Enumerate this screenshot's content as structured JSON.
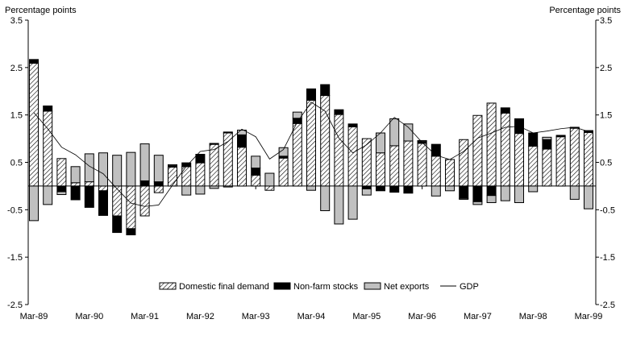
{
  "chart_data": {
    "type": "bar",
    "stacked": true,
    "ylabel_left": "Percentage points",
    "ylabel_right": "Percentage points",
    "ylim": [
      -2.5,
      3.5
    ],
    "yticks": [
      "-2.5",
      "-1.5",
      "-0.5",
      "0.5",
      "1.5",
      "2.5",
      "3.5"
    ],
    "grid": false,
    "legend_position": "bottom",
    "categories": [
      "Mar-89",
      "Jun-89",
      "Sep-89",
      "Dec-89",
      "Mar-90",
      "Jun-90",
      "Sep-90",
      "Dec-90",
      "Mar-91",
      "Jun-91",
      "Sep-91",
      "Dec-91",
      "Mar-92",
      "Jun-92",
      "Sep-92",
      "Dec-92",
      "Mar-93",
      "Jun-93",
      "Sep-93",
      "Dec-93",
      "Mar-94",
      "Jun-94",
      "Sep-94",
      "Dec-94",
      "Mar-95",
      "Jun-95",
      "Sep-95",
      "Dec-95",
      "Mar-96",
      "Jun-96",
      "Sep-96",
      "Dec-96",
      "Mar-97",
      "Jun-97",
      "Sep-97",
      "Dec-97",
      "Mar-98",
      "Jun-98",
      "Sep-98",
      "Dec-98",
      "Mar-99"
    ],
    "xtick_labels": [
      "Mar-89",
      "Mar-90",
      "Mar-91",
      "Mar-92",
      "Mar-93",
      "Mar-94",
      "Mar-95",
      "Mar-96",
      "Mar-97",
      "Mar-98",
      "Mar-99"
    ],
    "series": [
      {
        "name": "Domestic final demand",
        "style": "hatched",
        "values": [
          2.59,
          1.58,
          0.58,
          0.07,
          0.09,
          -0.1,
          -0.63,
          -0.9,
          -0.63,
          -0.14,
          0.4,
          0.41,
          0.49,
          0.88,
          1.12,
          0.82,
          0.23,
          -0.09,
          0.59,
          1.32,
          1.81,
          1.91,
          1.51,
          1.25,
          1.0,
          0.7,
          0.85,
          0.95,
          0.9,
          0.63,
          0.56,
          0.98,
          1.49,
          1.75,
          1.54,
          1.11,
          0.84,
          0.78,
          1.04,
          1.22,
          1.13
        ]
      },
      {
        "name": "Non-farm stocks",
        "color": "#000000",
        "values": [
          0.08,
          0.11,
          -0.12,
          -0.29,
          -0.45,
          -0.52,
          -0.35,
          -0.13,
          0.11,
          0.09,
          0.03,
          0.08,
          0.18,
          0.02,
          0.02,
          0.26,
          0.15,
          0.0,
          0.04,
          0.11,
          0.24,
          0.23,
          0.1,
          0.06,
          -0.06,
          -0.1,
          -0.13,
          -0.15,
          0.04,
          0.25,
          0.0,
          -0.26,
          -0.33,
          -0.2,
          0.11,
          0.31,
          0.28,
          0.2,
          0.03,
          0.02,
          0.04
        ]
      },
      {
        "name": "Net exports",
        "color": "#c0c0c0",
        "values": [
          -0.73,
          -0.39,
          -0.06,
          0.34,
          0.59,
          0.7,
          0.65,
          0.71,
          0.78,
          0.56,
          0.02,
          -0.19,
          -0.17,
          -0.05,
          -0.02,
          0.1,
          0.25,
          0.27,
          0.18,
          0.13,
          -0.09,
          -0.52,
          -0.8,
          -0.7,
          -0.13,
          0.42,
          0.57,
          0.36,
          0.02,
          -0.21,
          -0.1,
          -0.02,
          -0.06,
          -0.15,
          -0.31,
          -0.35,
          -0.12,
          0.05,
          0.0,
          -0.28,
          -0.48
        ]
      },
      {
        "name": "GDP",
        "type": "line",
        "color": "#000000",
        "values": [
          1.55,
          1.21,
          0.82,
          0.66,
          0.42,
          0.26,
          -0.06,
          -0.36,
          -0.43,
          -0.4,
          0.02,
          0.42,
          0.73,
          0.77,
          0.94,
          1.2,
          1.04,
          0.57,
          0.77,
          1.35,
          1.77,
          1.58,
          1.01,
          0.7,
          0.87,
          1.12,
          1.45,
          1.24,
          0.92,
          0.65,
          0.56,
          0.73,
          1.01,
          1.12,
          1.24,
          1.26,
          1.12,
          1.16,
          1.21,
          1.24,
          1.15
        ]
      }
    ]
  }
}
